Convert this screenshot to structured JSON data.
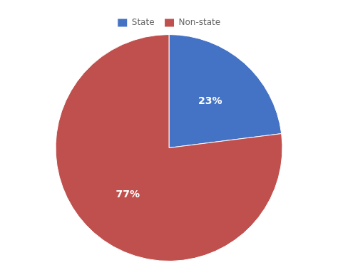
{
  "chart_data": {
    "type": "pie",
    "categories": [
      "State",
      "Non-state"
    ],
    "values": [
      23,
      77
    ],
    "value_labels": [
      "23%",
      "77%"
    ],
    "colors": [
      "#4472C4",
      "#C0504D"
    ],
    "data_labels": true,
    "legend": "top"
  }
}
